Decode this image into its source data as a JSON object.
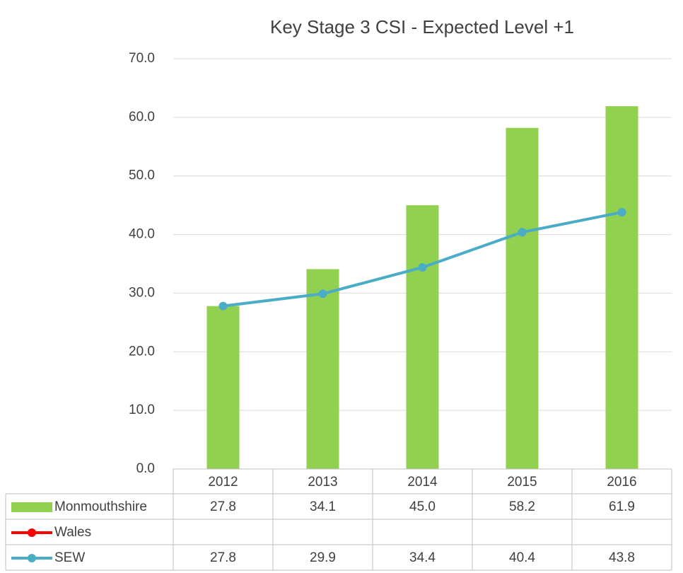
{
  "chart_data": {
    "type": "bar",
    "title": "Key Stage 3 CSI - Expected Level +1",
    "categories": [
      "2012",
      "2013",
      "2014",
      "2015",
      "2016"
    ],
    "series": [
      {
        "name": "Monmouthshire",
        "type": "bar",
        "color": "#92d050",
        "values": [
          27.8,
          34.1,
          45.0,
          58.2,
          61.9
        ],
        "value_labels": [
          "27.8",
          "34.1",
          "45.0",
          "58.2",
          "61.9"
        ]
      },
      {
        "name": "Wales",
        "type": "line",
        "color": "#ff0000",
        "values": [
          null,
          null,
          null,
          null,
          null
        ]
      },
      {
        "name": "SEW",
        "type": "line",
        "color": "#4bacc6",
        "values": [
          27.8,
          29.9,
          34.4,
          40.4,
          43.8
        ]
      }
    ],
    "ylim": [
      0,
      70
    ],
    "yticks": [
      {
        "value": 0,
        "label": "0.0"
      },
      {
        "value": 10,
        "label": "10.0"
      },
      {
        "value": 20,
        "label": "20.0"
      },
      {
        "value": 30,
        "label": "30.0"
      },
      {
        "value": 40,
        "label": "40.0"
      },
      {
        "value": 50,
        "label": "50.0"
      },
      {
        "value": 60,
        "label": "60.0"
      },
      {
        "value": 70,
        "label": "70.0"
      }
    ],
    "grid": true,
    "legend": "table"
  }
}
